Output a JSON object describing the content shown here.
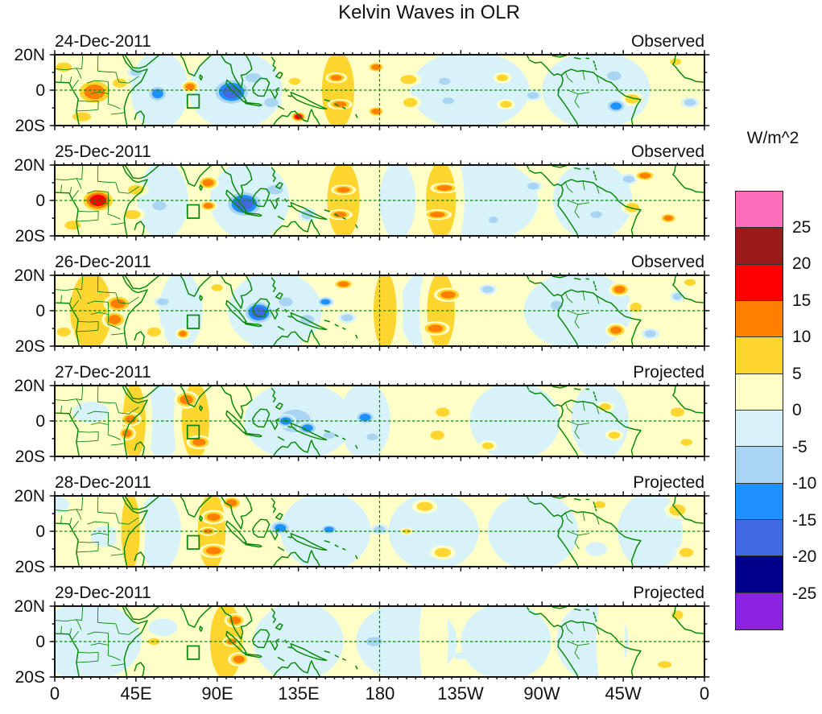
{
  "title": "Kelvin Waves in OLR",
  "axes": {
    "x_tick_labels": [
      "0",
      "45E",
      "90E",
      "135E",
      "180",
      "135W",
      "90W",
      "45W",
      "0"
    ],
    "y_tick_labels": [
      "20N",
      "0",
      "20S"
    ]
  },
  "colorbar": {
    "unit_label": "W/m^2",
    "tick_labels": [
      "25",
      "20",
      "15",
      "10",
      "5",
      "0",
      "-5",
      "-10",
      "-15",
      "-20",
      "-25"
    ],
    "colors_top_to_bottom": [
      "#ff6eb8",
      "#9b1b1b",
      "#ff0000",
      "#ff8000",
      "#ffd530",
      "#ffffc8",
      "#d8f2fa",
      "#a9d4f2",
      "#1e90ff",
      "#4169e1",
      "#00008b",
      "#8b22dd"
    ]
  },
  "chart_data": {
    "type": "heatmap",
    "subtype": "filled-contour-longitude-latitude-maps",
    "units": "W/m^2",
    "lon_range": [
      0,
      360
    ],
    "lat_range": [
      -20,
      20
    ],
    "contour_interval": 5,
    "value_range": [
      -25,
      25
    ],
    "reference_box": {
      "lon_min": 73.5,
      "lon_max": 80,
      "lat_min": -10,
      "lat_max": -2.5
    },
    "dashed_reference_lines": {
      "equator_lat": 0,
      "meridian_lon": 180
    },
    "feature_format": [
      "lon_center_deg",
      "lat_center_deg",
      "rx_deg",
      "ry_deg",
      "peak_value_wm2"
    ],
    "panels": [
      {
        "date": "24-Dec-2011",
        "source": "Observed",
        "features": [
          [
            58,
            0,
            16,
            22,
            -5
          ],
          [
            100,
            0,
            26,
            22,
            -5
          ],
          [
            230,
            0,
            33,
            22,
            -5
          ],
          [
            300,
            0,
            30,
            22,
            -5
          ],
          [
            22,
            -1,
            11,
            8,
            15
          ],
          [
            5,
            13,
            7,
            4,
            10
          ],
          [
            36,
            4,
            6,
            4,
            10
          ],
          [
            15,
            -15,
            8,
            4,
            10
          ],
          [
            75,
            2,
            5,
            3.5,
            15
          ],
          [
            135,
            -15,
            4.5,
            3,
            20
          ],
          [
            133,
            5,
            5,
            3,
            10
          ],
          [
            157,
            0,
            14,
            34,
            10
          ],
          [
            156,
            7,
            6,
            3,
            15
          ],
          [
            158,
            -8,
            7,
            3,
            15
          ],
          [
            178,
            13,
            5,
            3,
            15
          ],
          [
            178,
            -12,
            5,
            3,
            15
          ],
          [
            196,
            6,
            7,
            4,
            10
          ],
          [
            197,
            -7,
            6,
            4,
            10
          ],
          [
            248,
            7,
            5,
            3,
            10
          ],
          [
            250,
            -8,
            5,
            3,
            10
          ],
          [
            320,
            -5,
            6,
            4,
            10
          ],
          [
            344,
            16,
            5,
            3,
            10
          ],
          [
            57,
            -2,
            6,
            5,
            -15
          ],
          [
            45,
            10,
            5,
            3,
            -10
          ],
          [
            98,
            -1,
            11,
            8,
            -20
          ],
          [
            110,
            7,
            7,
            4,
            -10
          ],
          [
            120,
            -7,
            6,
            4,
            -10
          ],
          [
            216,
            5,
            5,
            3,
            -10
          ],
          [
            218,
            -6,
            5,
            3,
            -10
          ],
          [
            265,
            -3,
            5,
            3,
            -10
          ],
          [
            310,
            8,
            6,
            4,
            -10
          ],
          [
            311,
            -9,
            6,
            4,
            -15
          ],
          [
            352,
            -7,
            5,
            3,
            -10
          ]
        ]
      },
      {
        "date": "25-Dec-2011",
        "source": "Observed",
        "features": [
          [
            60,
            0,
            14,
            22,
            -5
          ],
          [
            108,
            0,
            22,
            22,
            -5
          ],
          [
            190,
            0,
            10,
            22,
            -5
          ],
          [
            240,
            0,
            28,
            22,
            -5
          ],
          [
            298,
            0,
            22,
            22,
            -5
          ],
          [
            24,
            0,
            10,
            7,
            20
          ],
          [
            45,
            6,
            7,
            4,
            10
          ],
          [
            43,
            -8,
            7,
            4,
            10
          ],
          [
            10,
            -14,
            7,
            4,
            10
          ],
          [
            85,
            10,
            6,
            4,
            15
          ],
          [
            85,
            -3,
            5,
            3,
            15
          ],
          [
            160,
            0,
            14,
            34,
            10
          ],
          [
            160,
            6,
            7,
            3,
            15
          ],
          [
            158,
            -8,
            7,
            3,
            15
          ],
          [
            214,
            0,
            13,
            34,
            10
          ],
          [
            216,
            7,
            8,
            3,
            15
          ],
          [
            212,
            -8,
            8,
            3,
            15
          ],
          [
            327,
            14,
            6,
            3,
            15
          ],
          [
            340,
            -10,
            5,
            3,
            15
          ],
          [
            320,
            -4,
            6,
            4,
            10
          ],
          [
            58,
            -3,
            6,
            4,
            -10
          ],
          [
            105,
            -2,
            11,
            8,
            -20
          ],
          [
            122,
            6,
            7,
            4,
            -10
          ],
          [
            140,
            -8,
            5,
            4,
            -10
          ],
          [
            265,
            8,
            5,
            3,
            -10
          ],
          [
            243,
            -11,
            4,
            3,
            -10
          ],
          [
            318,
            12,
            5,
            3,
            -10
          ],
          [
            300,
            -8,
            5,
            3,
            -10
          ]
        ]
      },
      {
        "date": "26-Dec-2011",
        "source": "Observed",
        "features": [
          [
            70,
            0,
            12,
            22,
            -5
          ],
          [
            122,
            0,
            26,
            22,
            -5
          ],
          [
            205,
            0,
            14,
            22,
            -5
          ],
          [
            290,
            0,
            30,
            22,
            -5
          ],
          [
            20,
            0,
            18,
            34,
            10
          ],
          [
            35,
            4,
            8,
            5,
            15
          ],
          [
            33,
            -5,
            7,
            5,
            15
          ],
          [
            5,
            -12,
            6,
            4,
            10
          ],
          [
            55,
            -12,
            6,
            4,
            10
          ],
          [
            71,
            -13,
            4,
            3,
            15
          ],
          [
            90,
            13,
            5,
            3,
            10
          ],
          [
            160,
            15,
            6,
            3,
            15
          ],
          [
            183,
            0,
            10,
            34,
            10
          ],
          [
            214,
            0,
            12,
            34,
            10
          ],
          [
            218,
            9,
            8,
            4,
            15
          ],
          [
            211,
            -10,
            8,
            4,
            15
          ],
          [
            313,
            12,
            6,
            4,
            15
          ],
          [
            311,
            -11,
            6,
            4,
            15
          ],
          [
            322,
            2,
            5,
            4,
            10
          ],
          [
            352,
            16,
            5,
            3,
            10
          ],
          [
            60,
            5,
            5,
            3,
            -10
          ],
          [
            113,
            -1,
            9,
            7,
            -20
          ],
          [
            128,
            5,
            6,
            4,
            -10
          ],
          [
            140,
            -5,
            6,
            4,
            -10
          ],
          [
            150,
            5,
            5,
            3,
            -15
          ],
          [
            162,
            -4,
            5,
            3,
            -10
          ],
          [
            240,
            12,
            5,
            3,
            -10
          ],
          [
            278,
            3,
            5,
            4,
            -10
          ],
          [
            330,
            -13,
            5,
            3,
            -10
          ],
          [
            345,
            8,
            4,
            3,
            -10
          ]
        ]
      },
      {
        "date": "27-Dec-2011",
        "source": "Projected",
        "features": [
          [
            60,
            0,
            10,
            22,
            -5
          ],
          [
            135,
            0,
            30,
            22,
            -5
          ],
          [
            172,
            0,
            14,
            22,
            -5
          ],
          [
            255,
            0,
            25,
            22,
            -5
          ],
          [
            302,
            0,
            16,
            22,
            -5
          ],
          [
            20,
            5,
            10,
            6,
            -5
          ],
          [
            44,
            0,
            10,
            34,
            10
          ],
          [
            42,
            1,
            6,
            4,
            15
          ],
          [
            40,
            -7,
            5,
            4,
            15
          ],
          [
            78,
            0,
            12,
            34,
            10
          ],
          [
            73,
            12,
            7,
            5,
            15
          ],
          [
            80,
            -12,
            7,
            4,
            15
          ],
          [
            215,
            5,
            6,
            4,
            10
          ],
          [
            212,
            -8,
            6,
            4,
            10
          ],
          [
            240,
            -14,
            5,
            3,
            10
          ],
          [
            305,
            8,
            5,
            3,
            10
          ],
          [
            310,
            -8,
            5,
            3,
            10
          ],
          [
            345,
            5,
            6,
            4,
            10
          ],
          [
            350,
            -12,
            5,
            3,
            10
          ],
          [
            133,
            0,
            14,
            10,
            -10
          ],
          [
            128,
            0,
            6,
            4,
            -15
          ],
          [
            140,
            -4,
            6,
            4,
            -15
          ],
          [
            152,
            -8,
            5,
            3,
            -10
          ],
          [
            172,
            2,
            6,
            4,
            -15
          ],
          [
            176,
            -9,
            5,
            3,
            -10
          ],
          [
            265,
            5,
            5,
            3,
            -5
          ]
        ]
      },
      {
        "date": "28-Dec-2011",
        "source": "Projected",
        "features": [
          [
            0,
            15,
            8,
            5,
            -5
          ],
          [
            28,
            -3,
            8,
            6,
            -5
          ],
          [
            58,
            0,
            12,
            22,
            -5
          ],
          [
            150,
            0,
            25,
            22,
            -5
          ],
          [
            210,
            0,
            25,
            22,
            -5
          ],
          [
            265,
            0,
            25,
            22,
            -5
          ],
          [
            330,
            0,
            18,
            22,
            -5
          ],
          [
            42,
            0,
            8,
            34,
            10
          ],
          [
            87,
            0,
            12,
            34,
            10
          ],
          [
            88,
            8,
            7,
            4,
            15
          ],
          [
            85,
            0,
            5,
            2.5,
            15
          ],
          [
            88,
            -11,
            8,
            4,
            15
          ],
          [
            98,
            16,
            6,
            4,
            15
          ],
          [
            205,
            14,
            7,
            4,
            10
          ],
          [
            215,
            -12,
            7,
            4,
            10
          ],
          [
            195,
            0,
            4,
            2,
            10
          ],
          [
            345,
            12,
            7,
            5,
            10
          ],
          [
            350,
            -12,
            6,
            4,
            10
          ],
          [
            302,
            15,
            5,
            3,
            10
          ],
          [
            125,
            2,
            6,
            4,
            -15
          ],
          [
            152,
            1,
            5,
            3,
            -15
          ],
          [
            180,
            1,
            5,
            3,
            -10
          ],
          [
            250,
            -10,
            5,
            3,
            -5
          ],
          [
            300,
            -10,
            6,
            4,
            -5
          ],
          [
            270,
            5,
            4,
            3,
            -5
          ]
        ]
      },
      {
        "date": "29-Dec-2011",
        "source": "Projected",
        "features": [
          [
            18,
            0,
            30,
            22,
            -5
          ],
          [
            135,
            0,
            25,
            22,
            -5
          ],
          [
            195,
            0,
            28,
            22,
            -5
          ],
          [
            250,
            0,
            25,
            22,
            -5
          ],
          [
            298,
            0,
            20,
            22,
            -5
          ],
          [
            60,
            8,
            8,
            5,
            -5
          ],
          [
            210,
            0,
            8,
            34,
            5
          ],
          [
            308,
            0,
            8,
            34,
            5
          ],
          [
            95,
            0,
            14,
            34,
            10
          ],
          [
            100,
            12,
            6,
            4,
            15
          ],
          [
            98,
            0,
            5,
            3,
            15
          ],
          [
            102,
            -10,
            6,
            4,
            15
          ],
          [
            55,
            0,
            5,
            3,
            10
          ],
          [
            345,
            15,
            5,
            4,
            10
          ],
          [
            338,
            -13,
            6,
            3,
            10
          ],
          [
            177,
            0,
            7,
            4,
            -10
          ],
          [
            115,
            -3,
            4,
            3,
            -5
          ],
          [
            225,
            -8,
            4,
            2,
            -5
          ]
        ]
      }
    ]
  }
}
